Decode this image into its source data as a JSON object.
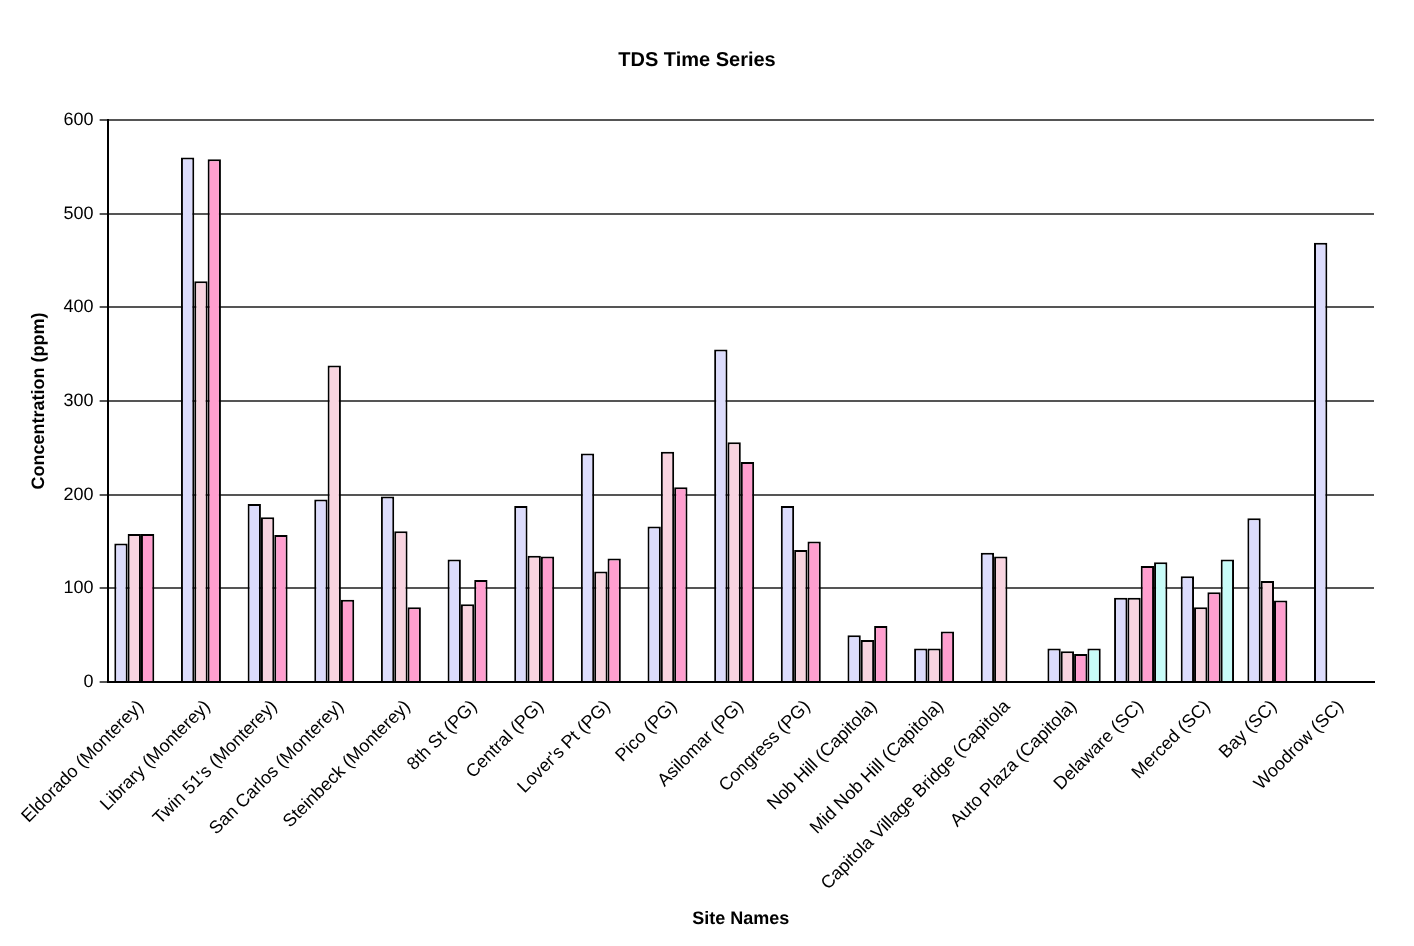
{
  "chart_data": {
    "type": "bar",
    "title": "TDS Time Series",
    "xlabel": "Site Names",
    "ylabel": "Concentration (ppm)",
    "categories": [
      "Eldorado (Monterey)",
      "Library (Monterey)",
      "Twin 51's (Monterey)",
      "San Carlos (Monterey)",
      "Steinbeck (Monterey)",
      "8th St (PG)",
      "Central (PG)",
      "Lover's Pt (PG)",
      "Pico (PG)",
      "Asilomar (PG)",
      "Congress (PG)",
      "Nob Hill (Capitola)",
      "Mid Nob Hill (Capitola)",
      "Capitola Village Bridge (Capitola",
      "Auto Plaza (Capitola)",
      "Delaware (SC)",
      "Merced (SC)",
      "Bay (SC)",
      "Woodrow (SC)"
    ],
    "series": [
      {
        "color": "#dcdcfc",
        "values": [
          148,
          560,
          190,
          195,
          198,
          131,
          188,
          244,
          166,
          355,
          188,
          50,
          36,
          138,
          36,
          90,
          113,
          175,
          469
        ]
      },
      {
        "color": "#f8d4e0",
        "values": [
          158,
          428,
          176,
          338,
          161,
          83,
          135,
          118,
          246,
          256,
          141,
          45,
          36,
          134,
          33,
          90,
          80,
          108,
          null
        ]
      },
      {
        "color": "#ff9fcf",
        "values": [
          158,
          558,
          157,
          88,
          80,
          109,
          134,
          132,
          208,
          235,
          150,
          60,
          54,
          null,
          30,
          124,
          96,
          87,
          null
        ]
      },
      {
        "color": "#c8fcf8",
        "values": [
          null,
          null,
          null,
          null,
          null,
          null,
          null,
          null,
          null,
          null,
          null,
          null,
          null,
          null,
          36,
          128,
          131,
          null,
          null
        ]
      }
    ],
    "ylim": [
      0,
      600
    ],
    "yticks": [
      0,
      100,
      200,
      300,
      400,
      500,
      600
    ],
    "grid": "y",
    "legend": false
  }
}
